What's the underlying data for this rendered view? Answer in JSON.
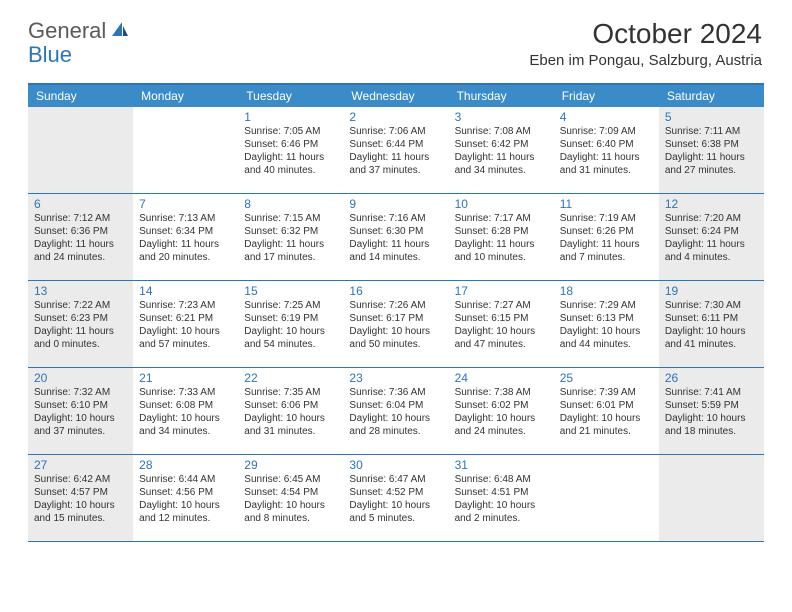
{
  "brand": {
    "general": "General",
    "blue": "Blue"
  },
  "header": {
    "month_title": "October 2024",
    "location": "Eben im Pongau, Salzburg, Austria"
  },
  "day_names": [
    "Sunday",
    "Monday",
    "Tuesday",
    "Wednesday",
    "Thursday",
    "Friday",
    "Saturday"
  ],
  "colors": {
    "header_bar": "#3b8bc9",
    "accent": "#2e75b6",
    "shaded": "#ebebeb",
    "text": "#333333",
    "logo_gray": "#5a5a5a"
  },
  "weeks": [
    [
      {
        "day": "",
        "sunrise": "",
        "sunset": "",
        "daylight": "",
        "shaded": true
      },
      {
        "day": "",
        "sunrise": "",
        "sunset": "",
        "daylight": "",
        "shaded": false
      },
      {
        "day": "1",
        "sunrise": "Sunrise: 7:05 AM",
        "sunset": "Sunset: 6:46 PM",
        "daylight": "Daylight: 11 hours and 40 minutes.",
        "shaded": false
      },
      {
        "day": "2",
        "sunrise": "Sunrise: 7:06 AM",
        "sunset": "Sunset: 6:44 PM",
        "daylight": "Daylight: 11 hours and 37 minutes.",
        "shaded": false
      },
      {
        "day": "3",
        "sunrise": "Sunrise: 7:08 AM",
        "sunset": "Sunset: 6:42 PM",
        "daylight": "Daylight: 11 hours and 34 minutes.",
        "shaded": false
      },
      {
        "day": "4",
        "sunrise": "Sunrise: 7:09 AM",
        "sunset": "Sunset: 6:40 PM",
        "daylight": "Daylight: 11 hours and 31 minutes.",
        "shaded": false
      },
      {
        "day": "5",
        "sunrise": "Sunrise: 7:11 AM",
        "sunset": "Sunset: 6:38 PM",
        "daylight": "Daylight: 11 hours and 27 minutes.",
        "shaded": true
      }
    ],
    [
      {
        "day": "6",
        "sunrise": "Sunrise: 7:12 AM",
        "sunset": "Sunset: 6:36 PM",
        "daylight": "Daylight: 11 hours and 24 minutes.",
        "shaded": true
      },
      {
        "day": "7",
        "sunrise": "Sunrise: 7:13 AM",
        "sunset": "Sunset: 6:34 PM",
        "daylight": "Daylight: 11 hours and 20 minutes.",
        "shaded": false
      },
      {
        "day": "8",
        "sunrise": "Sunrise: 7:15 AM",
        "sunset": "Sunset: 6:32 PM",
        "daylight": "Daylight: 11 hours and 17 minutes.",
        "shaded": false
      },
      {
        "day": "9",
        "sunrise": "Sunrise: 7:16 AM",
        "sunset": "Sunset: 6:30 PM",
        "daylight": "Daylight: 11 hours and 14 minutes.",
        "shaded": false
      },
      {
        "day": "10",
        "sunrise": "Sunrise: 7:17 AM",
        "sunset": "Sunset: 6:28 PM",
        "daylight": "Daylight: 11 hours and 10 minutes.",
        "shaded": false
      },
      {
        "day": "11",
        "sunrise": "Sunrise: 7:19 AM",
        "sunset": "Sunset: 6:26 PM",
        "daylight": "Daylight: 11 hours and 7 minutes.",
        "shaded": false
      },
      {
        "day": "12",
        "sunrise": "Sunrise: 7:20 AM",
        "sunset": "Sunset: 6:24 PM",
        "daylight": "Daylight: 11 hours and 4 minutes.",
        "shaded": true
      }
    ],
    [
      {
        "day": "13",
        "sunrise": "Sunrise: 7:22 AM",
        "sunset": "Sunset: 6:23 PM",
        "daylight": "Daylight: 11 hours and 0 minutes.",
        "shaded": true
      },
      {
        "day": "14",
        "sunrise": "Sunrise: 7:23 AM",
        "sunset": "Sunset: 6:21 PM",
        "daylight": "Daylight: 10 hours and 57 minutes.",
        "shaded": false
      },
      {
        "day": "15",
        "sunrise": "Sunrise: 7:25 AM",
        "sunset": "Sunset: 6:19 PM",
        "daylight": "Daylight: 10 hours and 54 minutes.",
        "shaded": false
      },
      {
        "day": "16",
        "sunrise": "Sunrise: 7:26 AM",
        "sunset": "Sunset: 6:17 PM",
        "daylight": "Daylight: 10 hours and 50 minutes.",
        "shaded": false
      },
      {
        "day": "17",
        "sunrise": "Sunrise: 7:27 AM",
        "sunset": "Sunset: 6:15 PM",
        "daylight": "Daylight: 10 hours and 47 minutes.",
        "shaded": false
      },
      {
        "day": "18",
        "sunrise": "Sunrise: 7:29 AM",
        "sunset": "Sunset: 6:13 PM",
        "daylight": "Daylight: 10 hours and 44 minutes.",
        "shaded": false
      },
      {
        "day": "19",
        "sunrise": "Sunrise: 7:30 AM",
        "sunset": "Sunset: 6:11 PM",
        "daylight": "Daylight: 10 hours and 41 minutes.",
        "shaded": true
      }
    ],
    [
      {
        "day": "20",
        "sunrise": "Sunrise: 7:32 AM",
        "sunset": "Sunset: 6:10 PM",
        "daylight": "Daylight: 10 hours and 37 minutes.",
        "shaded": true
      },
      {
        "day": "21",
        "sunrise": "Sunrise: 7:33 AM",
        "sunset": "Sunset: 6:08 PM",
        "daylight": "Daylight: 10 hours and 34 minutes.",
        "shaded": false
      },
      {
        "day": "22",
        "sunrise": "Sunrise: 7:35 AM",
        "sunset": "Sunset: 6:06 PM",
        "daylight": "Daylight: 10 hours and 31 minutes.",
        "shaded": false
      },
      {
        "day": "23",
        "sunrise": "Sunrise: 7:36 AM",
        "sunset": "Sunset: 6:04 PM",
        "daylight": "Daylight: 10 hours and 28 minutes.",
        "shaded": false
      },
      {
        "day": "24",
        "sunrise": "Sunrise: 7:38 AM",
        "sunset": "Sunset: 6:02 PM",
        "daylight": "Daylight: 10 hours and 24 minutes.",
        "shaded": false
      },
      {
        "day": "25",
        "sunrise": "Sunrise: 7:39 AM",
        "sunset": "Sunset: 6:01 PM",
        "daylight": "Daylight: 10 hours and 21 minutes.",
        "shaded": false
      },
      {
        "day": "26",
        "sunrise": "Sunrise: 7:41 AM",
        "sunset": "Sunset: 5:59 PM",
        "daylight": "Daylight: 10 hours and 18 minutes.",
        "shaded": true
      }
    ],
    [
      {
        "day": "27",
        "sunrise": "Sunrise: 6:42 AM",
        "sunset": "Sunset: 4:57 PM",
        "daylight": "Daylight: 10 hours and 15 minutes.",
        "shaded": true
      },
      {
        "day": "28",
        "sunrise": "Sunrise: 6:44 AM",
        "sunset": "Sunset: 4:56 PM",
        "daylight": "Daylight: 10 hours and 12 minutes.",
        "shaded": false
      },
      {
        "day": "29",
        "sunrise": "Sunrise: 6:45 AM",
        "sunset": "Sunset: 4:54 PM",
        "daylight": "Daylight: 10 hours and 8 minutes.",
        "shaded": false
      },
      {
        "day": "30",
        "sunrise": "Sunrise: 6:47 AM",
        "sunset": "Sunset: 4:52 PM",
        "daylight": "Daylight: 10 hours and 5 minutes.",
        "shaded": false
      },
      {
        "day": "31",
        "sunrise": "Sunrise: 6:48 AM",
        "sunset": "Sunset: 4:51 PM",
        "daylight": "Daylight: 10 hours and 2 minutes.",
        "shaded": false
      },
      {
        "day": "",
        "sunrise": "",
        "sunset": "",
        "daylight": "",
        "shaded": false
      },
      {
        "day": "",
        "sunrise": "",
        "sunset": "",
        "daylight": "",
        "shaded": true
      }
    ]
  ]
}
